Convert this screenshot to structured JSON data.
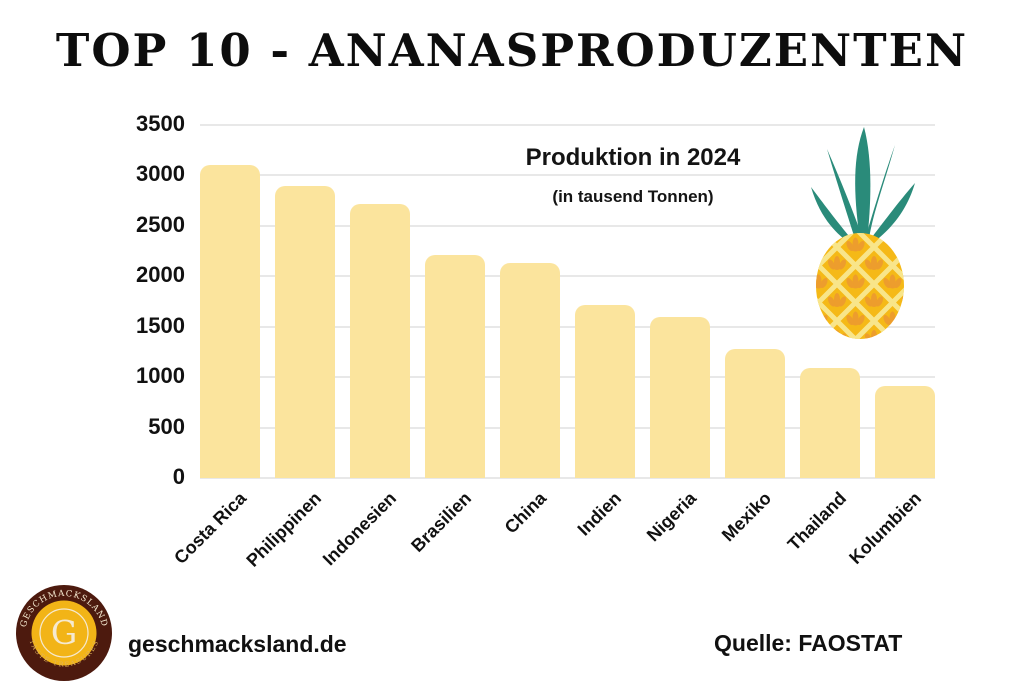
{
  "header": {
    "title": "TOP 10 - ANANASPRODUZENTEN"
  },
  "chart_data": {
    "type": "bar",
    "title": "Produktion in 2024",
    "subtitle": "(in tausend Tonnen)",
    "categories": [
      "Costa Rica",
      "Philippinen",
      "Indonesien",
      "Brasilien",
      "China",
      "Indien",
      "Nigeria",
      "Mexiko",
      "Thailand",
      "Kolumbien"
    ],
    "values": [
      3100,
      2900,
      2720,
      2210,
      2130,
      1720,
      1600,
      1280,
      1090,
      910
    ],
    "xlabel": "",
    "ylabel": "",
    "ylim": [
      0,
      3500
    ],
    "yticks": [
      0,
      500,
      1000,
      1500,
      2000,
      2500,
      3000,
      3500
    ],
    "grid": true,
    "legend": "none",
    "bar_color": "#FBE49D",
    "grid_color": "#E8E8E8"
  },
  "footer": {
    "site": "geschmacksland.de",
    "source": "Quelle: FAOSTAT"
  },
  "logo": {
    "ring_text_top": "GESCHMACKSLAND",
    "ring_text_bottom": "TASTE TREASURES",
    "monogram": "G",
    "colors": {
      "ring": "#4D1A0E",
      "inner": "#F2B417",
      "text": "#F5E9D0",
      "bottom_text": "#E0B35B"
    }
  },
  "pineapple": {
    "leaf_color": "#2A8B7A",
    "body_color": "#F5B917",
    "line_color": "#F8E58A",
    "mark_color": "#ED9D2D"
  }
}
